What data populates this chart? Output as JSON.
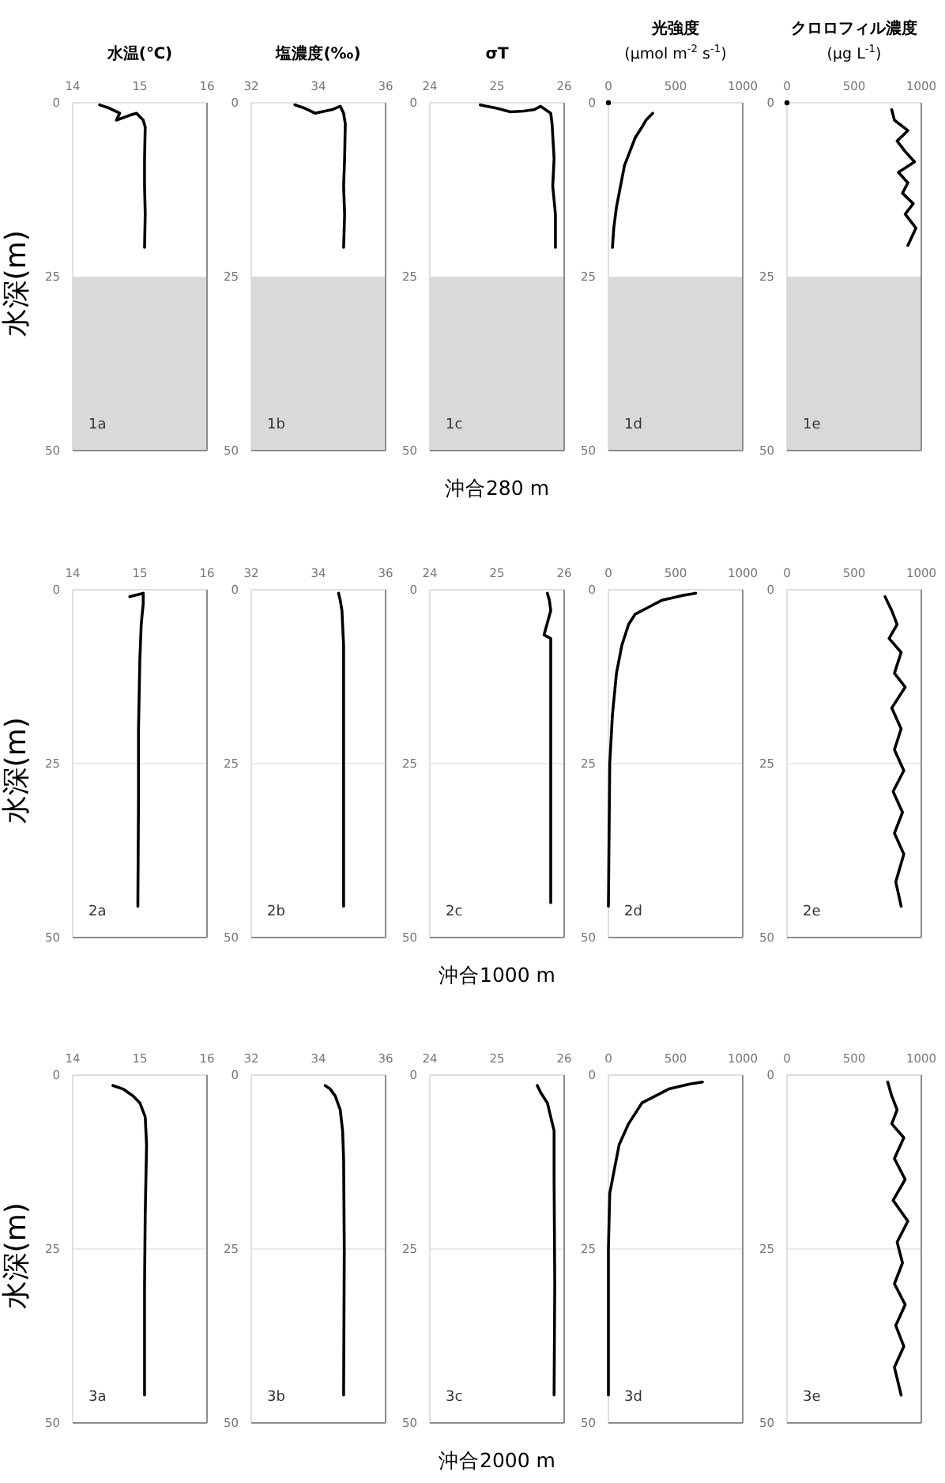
{
  "chart_data": [
    {
      "type": "line",
      "title": "水温(℃)",
      "ylabel": "水深(m)",
      "xlim": [
        14,
        16
      ],
      "xticks": [
        14,
        15,
        16
      ],
      "ylim": [
        50,
        0
      ],
      "yticks": [
        0,
        25,
        50
      ],
      "annotations": [
        "1a"
      ],
      "bands": [
        {
          "axis": "y",
          "from": 25,
          "to": 50,
          "color": "#d9d9d9"
        }
      ],
      "series": [
        {
          "color": "#000000",
          "x": [
            14.4,
            14.55,
            14.7,
            14.65,
            14.85,
            14.95,
            15.05,
            15.08,
            15.07,
            15.07,
            15.08,
            15.07
          ],
          "values": [
            0.3,
            0.8,
            1.5,
            2.5,
            1.8,
            1.5,
            2.5,
            3.5,
            8,
            12,
            16,
            20.8
          ]
        }
      ]
    },
    {
      "type": "line",
      "title": "塩濃度(‰)",
      "xlim": [
        32,
        36
      ],
      "xticks": [
        32,
        34,
        36
      ],
      "ylim": [
        50,
        0
      ],
      "yticks": [
        0,
        25,
        50
      ],
      "annotations": [
        "1b"
      ],
      "bands": [
        {
          "axis": "y",
          "from": 25,
          "to": 50,
          "color": "#d9d9d9"
        }
      ],
      "series": [
        {
          "color": "#000000",
          "x": [
            33.3,
            33.6,
            33.9,
            34.2,
            34.4,
            34.65,
            34.75,
            34.8,
            34.78,
            34.75,
            34.78,
            34.75
          ],
          "values": [
            0.3,
            0.8,
            1.5,
            1.2,
            1,
            0.5,
            1.5,
            3,
            8,
            12,
            16,
            20.8
          ]
        }
      ]
    },
    {
      "type": "line",
      "title": "σT",
      "xlim": [
        24,
        26
      ],
      "xticks": [
        24,
        25,
        26
      ],
      "ylim": [
        50,
        0
      ],
      "yticks": [
        0,
        25,
        50
      ],
      "annotations": [
        "1c",
        "沖合280 m"
      ],
      "bands": [
        {
          "axis": "y",
          "from": 25,
          "to": 50,
          "color": "#d9d9d9"
        }
      ],
      "series": [
        {
          "color": "#000000",
          "x": [
            24.75,
            25.0,
            25.2,
            25.4,
            25.55,
            25.65,
            25.8,
            25.82,
            25.85,
            25.83,
            25.87,
            25.87
          ],
          "values": [
            0.3,
            0.8,
            1.3,
            1.2,
            1.0,
            0.5,
            1.5,
            3,
            8,
            12,
            16,
            20.8
          ]
        }
      ]
    },
    {
      "type": "line",
      "title": "光強度",
      "subtitle": "(μmol m$^{-2}$ s$^{-1}$)",
      "xlim": [
        0,
        1000
      ],
      "xticks": [
        0,
        500,
        1000
      ],
      "ylim": [
        50,
        0
      ],
      "yticks": [
        0,
        25,
        50
      ],
      "annotations": [
        "1d"
      ],
      "bands": [
        {
          "axis": "y",
          "from": 25,
          "to": 50,
          "color": "#d9d9d9"
        }
      ],
      "series": [
        {
          "color": "#000000",
          "x": [
            330,
            280,
            250,
            200,
            160,
            120,
            90,
            60,
            40,
            30
          ],
          "values": [
            1.5,
            2.5,
            3.5,
            5,
            7,
            9,
            12,
            15,
            18,
            20.8
          ]
        },
        {
          "type": "scatter",
          "color": "#000000",
          "x": [
            0
          ],
          "values": [
            0
          ]
        }
      ]
    },
    {
      "type": "line",
      "title": "クロロフィル濃度",
      "subtitle": "(μg L$^{-1}$)",
      "xlim": [
        0,
        1000
      ],
      "xticks": [
        0,
        500,
        1000
      ],
      "ylim": [
        50,
        0
      ],
      "yticks": [
        0,
        25,
        50
      ],
      "annotations": [
        "1e"
      ],
      "bands": [
        {
          "axis": "y",
          "from": 25,
          "to": 50,
          "color": "#d9d9d9"
        }
      ],
      "series": [
        {
          "color": "#000000",
          "x": [
            780,
            800,
            900,
            820,
            880,
            950,
            830,
            900,
            860,
            940,
            880,
            960,
            900
          ],
          "values": [
            1,
            2.5,
            4,
            5.5,
            7,
            8.5,
            10,
            11.5,
            13,
            14.5,
            16,
            18,
            20.5
          ]
        },
        {
          "type": "scatter",
          "color": "#000000",
          "x": [
            0
          ],
          "values": [
            0
          ]
        }
      ]
    },
    {
      "type": "line",
      "ylabel": "水深(m)",
      "xlim": [
        14,
        16
      ],
      "xticks": [
        14,
        15,
        16
      ],
      "ylim": [
        50,
        0
      ],
      "yticks": [
        0,
        25,
        50
      ],
      "grid": "y",
      "annotations": [
        "2a"
      ],
      "series": [
        {
          "color": "#000000",
          "x": [
            14.85,
            15.05,
            15.05,
            15.02,
            15.0,
            14.98,
            14.98,
            14.97
          ],
          "values": [
            1,
            0.5,
            2,
            5,
            10,
            20,
            30,
            45.5
          ]
        }
      ]
    },
    {
      "type": "line",
      "xlim": [
        32,
        36
      ],
      "xticks": [
        32,
        34,
        36
      ],
      "ylim": [
        50,
        0
      ],
      "yticks": [
        0,
        25,
        50
      ],
      "grid": "y",
      "annotations": [
        "2b"
      ],
      "series": [
        {
          "color": "#000000",
          "x": [
            34.6,
            34.65,
            34.7,
            34.75,
            34.75,
            34.75,
            34.75
          ],
          "values": [
            0.5,
            1.5,
            3,
            8,
            20,
            30,
            45.5
          ]
        }
      ]
    },
    {
      "type": "line",
      "xlim": [
        24,
        26
      ],
      "xticks": [
        24,
        25,
        26
      ],
      "ylim": [
        50,
        0
      ],
      "yticks": [
        0,
        25,
        50
      ],
      "grid": "y",
      "annotations": [
        "2c",
        "沖合1000 m"
      ],
      "series": [
        {
          "color": "#000000",
          "x": [
            25.75,
            25.78,
            25.8,
            25.7,
            25.8,
            25.8,
            25.8,
            25.8
          ],
          "values": [
            0.5,
            1.5,
            3,
            6.5,
            7,
            15,
            30,
            45
          ]
        }
      ]
    },
    {
      "type": "line",
      "xlim": [
        0,
        1000
      ],
      "xticks": [
        0,
        500,
        1000
      ],
      "ylim": [
        50,
        0
      ],
      "yticks": [
        0,
        25,
        50
      ],
      "grid": "y",
      "annotations": [
        "2d"
      ],
      "series": [
        {
          "color": "#000000",
          "x": [
            650,
            560,
            400,
            300,
            200,
            150,
            100,
            60,
            30,
            10,
            5,
            0
          ],
          "values": [
            0.5,
            0.8,
            1.5,
            2.5,
            3.5,
            5,
            8,
            12,
            18,
            25,
            35,
            45.5
          ]
        }
      ]
    },
    {
      "type": "line",
      "xlim": [
        0,
        1000
      ],
      "xticks": [
        0,
        500,
        1000
      ],
      "ylim": [
        50,
        0
      ],
      "yticks": [
        0,
        25,
        50
      ],
      "grid": "y",
      "annotations": [
        "2e"
      ],
      "series": [
        {
          "color": "#000000",
          "x": [
            730,
            780,
            820,
            760,
            850,
            800,
            880,
            780,
            850,
            800,
            870,
            790,
            860,
            800,
            870,
            810,
            850
          ],
          "values": [
            1,
            3,
            5,
            7,
            9,
            12,
            14,
            17,
            20,
            23,
            26,
            29,
            32,
            35,
            38,
            42,
            45.5
          ]
        }
      ]
    },
    {
      "type": "line",
      "ylabel": "水深(m)",
      "xlim": [
        14,
        16
      ],
      "xticks": [
        14,
        15,
        16
      ],
      "ylim": [
        50,
        0
      ],
      "yticks": [
        0,
        25,
        50
      ],
      "grid": "y",
      "annotations": [
        "3a"
      ],
      "series": [
        {
          "color": "#000000",
          "x": [
            14.6,
            14.75,
            14.9,
            15.0,
            15.08,
            15.1,
            15.08,
            15.07,
            15.07
          ],
          "values": [
            1.5,
            2,
            3,
            4,
            6,
            10,
            20,
            30,
            46
          ]
        }
      ]
    },
    {
      "type": "line",
      "xlim": [
        32,
        36
      ],
      "xticks": [
        32,
        34,
        36
      ],
      "ylim": [
        50,
        0
      ],
      "yticks": [
        0,
        25,
        50
      ],
      "grid": "y",
      "annotations": [
        "3b"
      ],
      "series": [
        {
          "color": "#000000",
          "x": [
            34.2,
            34.35,
            34.5,
            34.65,
            34.72,
            34.75,
            34.77,
            34.75
          ],
          "values": [
            1.5,
            2,
            3,
            5,
            8,
            12,
            25,
            46
          ]
        }
      ]
    },
    {
      "type": "line",
      "xlim": [
        24,
        26
      ],
      "xticks": [
        24,
        25,
        26
      ],
      "ylim": [
        50,
        0
      ],
      "yticks": [
        0,
        25,
        50
      ],
      "grid": "y",
      "annotations": [
        "3c",
        "沖合2000 m"
      ],
      "series": [
        {
          "color": "#000000",
          "x": [
            25.6,
            25.65,
            25.75,
            25.8,
            25.85,
            25.85,
            25.86,
            25.85
          ],
          "values": [
            1.5,
            2.5,
            4,
            6,
            8,
            15,
            30,
            46
          ]
        }
      ]
    },
    {
      "type": "line",
      "xlim": [
        0,
        1000
      ],
      "xticks": [
        0,
        500,
        1000
      ],
      "ylim": [
        50,
        0
      ],
      "yticks": [
        0,
        25,
        50
      ],
      "grid": "y",
      "annotations": [
        "3d"
      ],
      "series": [
        {
          "color": "#000000",
          "x": [
            700,
            600,
            450,
            350,
            250,
            200,
            150,
            80,
            40,
            10,
            0,
            0
          ],
          "values": [
            1,
            1.3,
            2,
            3,
            4,
            5.5,
            7,
            10,
            14,
            17,
            25,
            46
          ]
        }
      ]
    },
    {
      "type": "line",
      "xlim": [
        0,
        1000
      ],
      "xticks": [
        0,
        500,
        1000
      ],
      "ylim": [
        50,
        0
      ],
      "yticks": [
        0,
        25,
        50
      ],
      "grid": "y",
      "annotations": [
        "3e"
      ],
      "series": [
        {
          "color": "#000000",
          "x": [
            750,
            780,
            820,
            780,
            870,
            800,
            880,
            790,
            900,
            820,
            860,
            800,
            880,
            810,
            870,
            800,
            850
          ],
          "values": [
            1,
            3,
            5,
            7,
            9,
            12,
            15,
            18,
            21,
            24,
            27,
            30,
            33,
            36,
            39,
            42,
            46
          ]
        }
      ]
    }
  ]
}
